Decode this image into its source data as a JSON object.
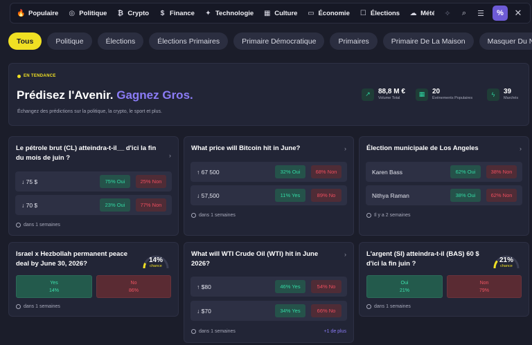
{
  "nav": {
    "items": [
      {
        "label": "Populaire",
        "icon": "fire-icon",
        "glyph": "🔥"
      },
      {
        "label": "Politique",
        "icon": "globe-icon",
        "glyph": "◎"
      },
      {
        "label": "Crypto",
        "icon": "bitcoin-icon",
        "glyph": "₿"
      },
      {
        "label": "Finance",
        "icon": "dollar-icon",
        "glyph": "$"
      },
      {
        "label": "Technologie",
        "icon": "chip-icon",
        "glyph": "✦"
      },
      {
        "label": "Culture",
        "icon": "grid-icon",
        "glyph": "▦"
      },
      {
        "label": "Économie",
        "icon": "money-icon",
        "glyph": "▭"
      },
      {
        "label": "Élections",
        "icon": "ballot-icon",
        "glyph": "☐"
      },
      {
        "label": "Météo",
        "icon": "weather-icon",
        "glyph": "☁"
      }
    ],
    "tools": {
      "sparkle": "✧",
      "search": "⌕",
      "filter": "☰",
      "percent": "%",
      "close": "✕"
    }
  },
  "chips": [
    "Tous",
    "Politique",
    "Élections",
    "Élections Primaires",
    "Primaire Démocratique",
    "Primaires",
    "Primaire De La Maison",
    "Masquer Du Nouvea"
  ],
  "hero": {
    "badge": "EN TENDANCE",
    "title_main": "Prédisez l'Avenir.",
    "title_accent": "Gagnez Gros.",
    "subtitle": "Échangez des prédictions sur la politique, la crypto, le sport et plus.",
    "stats": [
      {
        "value": "88,8 M €",
        "label": "Volume Total",
        "icon": "trending-up-icon",
        "glyph": "↗"
      },
      {
        "value": "20",
        "label": "Événements Populaires",
        "icon": "grid-icon",
        "glyph": "▦"
      },
      {
        "value": "39",
        "label": "Marchés",
        "icon": "lightning-icon",
        "glyph": "ϟ"
      }
    ]
  },
  "cards": [
    {
      "title": "Le pétrole brut (CL) atteindra-t-il__ d'ici la fin du mois de juin ?",
      "rows": [
        {
          "label": "↓ 75 $",
          "yes": "75% Oui",
          "no": "25% Non"
        },
        {
          "label": "↓ 70 $",
          "yes": "23% Oui",
          "no": "77% Non"
        }
      ],
      "foot": "dans 1 semaines"
    },
    {
      "title": "What price will Bitcoin hit in June?",
      "rows": [
        {
          "label": "↑ 67 500",
          "yes": "32% Oui",
          "no": "68% Non"
        },
        {
          "label": "↓ 57,500",
          "yes": "11% Yes",
          "no": "89% No"
        }
      ],
      "foot": "dans 1 semaines"
    },
    {
      "title": "Élection municipale de Los Angeles",
      "rows": [
        {
          "label": "Karen Bass",
          "yes": "62% Oui",
          "no": "38% Non"
        },
        {
          "label": "Nithya Raman",
          "yes": "38% Oui",
          "no": "62% Non"
        }
      ],
      "foot": "Il y a 2 semaines"
    },
    {
      "title": "Israel x Hezbollah permanent peace deal by June 30, 2026?",
      "gauge": {
        "value": "14%",
        "label": "chance",
        "fraction": 0.14
      },
      "yes_label": "Yes",
      "yes_pct": "14%",
      "no_label": "No",
      "no_pct": "86%",
      "foot": "dans 1 semaines"
    },
    {
      "title": "What will WTI Crude Oil (WTI) hit in June 2026?",
      "rows": [
        {
          "label": "↑ $80",
          "yes": "46% Yes",
          "no": "54% No"
        },
        {
          "label": "↓ $70",
          "yes": "34% Yes",
          "no": "66% No"
        }
      ],
      "foot": "dans 1 semaines",
      "more": "+1 de plus"
    },
    {
      "title": "L'argent (SI) atteindra-t-il (BAS) 60 $ d'ici la fin juin ?",
      "gauge": {
        "value": "21%",
        "label": "chance",
        "fraction": 0.21
      },
      "yes_label": "Oui",
      "yes_pct": "21%",
      "no_label": "Non",
      "no_pct": "79%",
      "foot": "dans 1 semaines"
    }
  ],
  "colors": {
    "accent": "#8b7cf6",
    "highlight": "#f0e023",
    "yes": "#33dba5",
    "no": "#ef4e5e"
  }
}
